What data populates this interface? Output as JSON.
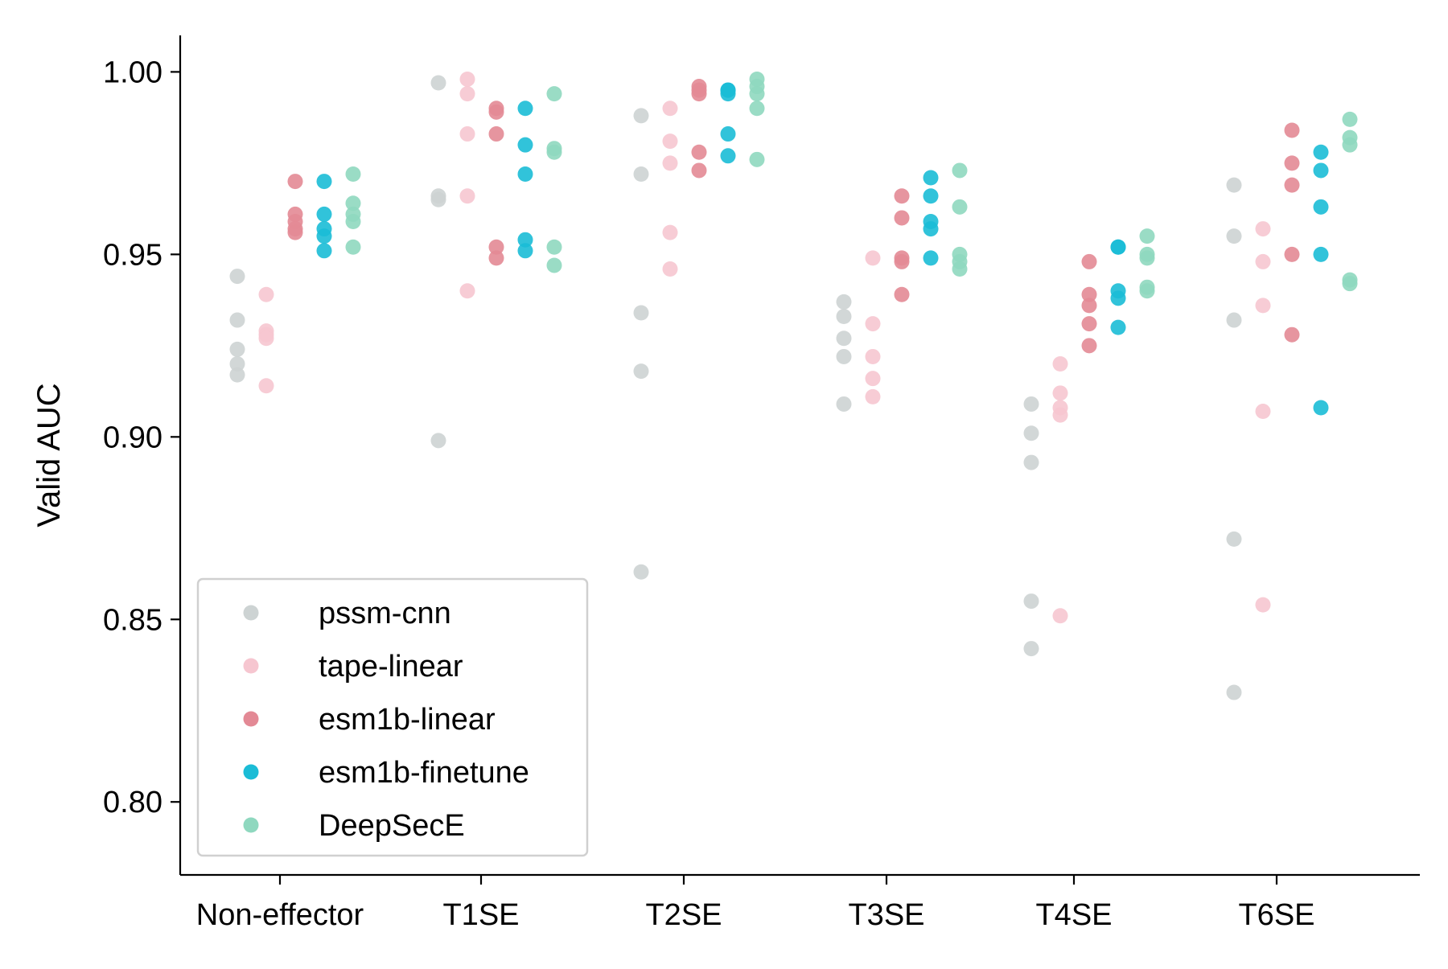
{
  "chart_data": {
    "type": "scatter",
    "title": "",
    "xlabel": "",
    "ylabel": "Valid AUC",
    "ylim": [
      0.78,
      1.01
    ],
    "yticks": [
      0.8,
      0.85,
      0.9,
      0.95,
      1.0
    ],
    "ytick_labels": [
      "0.80",
      "0.85",
      "0.90",
      "0.95",
      "1.00"
    ],
    "categories": [
      "Non-effector",
      "T1SE",
      "T2SE",
      "T3SE",
      "T4SE",
      "T6SE"
    ],
    "grid": false,
    "legend_position": "lower-left",
    "series": [
      {
        "name": "pssm-cnn",
        "color": "#cdd3d3",
        "values": [
          [
            0.944,
            0.932,
            0.924,
            0.92,
            0.917
          ],
          [
            0.997,
            0.966,
            0.965,
            0.899
          ],
          [
            0.988,
            0.972,
            0.934,
            0.918,
            0.863
          ],
          [
            0.937,
            0.933,
            0.927,
            0.922,
            0.909
          ],
          [
            0.909,
            0.901,
            0.893,
            0.855,
            0.842
          ],
          [
            0.969,
            0.955,
            0.932,
            0.872,
            0.83
          ]
        ]
      },
      {
        "name": "tape-linear",
        "color": "#f6c6d0",
        "values": [
          [
            0.939,
            0.929,
            0.928,
            0.927,
            0.914
          ],
          [
            0.998,
            0.994,
            0.983,
            0.966,
            0.94
          ],
          [
            0.99,
            0.981,
            0.975,
            0.956,
            0.946
          ],
          [
            0.949,
            0.931,
            0.922,
            0.916,
            0.911
          ],
          [
            0.92,
            0.912,
            0.908,
            0.906,
            0.851
          ],
          [
            0.957,
            0.948,
            0.936,
            0.907,
            0.854
          ]
        ]
      },
      {
        "name": "esm1b-linear",
        "color": "#e38995",
        "values": [
          [
            0.97,
            0.961,
            0.959,
            0.957,
            0.956
          ],
          [
            0.99,
            0.989,
            0.983,
            0.952,
            0.949
          ],
          [
            0.996,
            0.994,
            0.978,
            0.973,
            0.995
          ],
          [
            0.966,
            0.96,
            0.949,
            0.948,
            0.939
          ],
          [
            0.948,
            0.939,
            0.936,
            0.931,
            0.925
          ],
          [
            0.984,
            0.975,
            0.969,
            0.95,
            0.928
          ]
        ]
      },
      {
        "name": "esm1b-finetune",
        "color": "#1bbcd6",
        "values": [
          [
            0.97,
            0.961,
            0.957,
            0.955,
            0.951
          ],
          [
            0.99,
            0.98,
            0.972,
            0.954,
            0.951
          ],
          [
            0.995,
            0.994,
            0.983,
            0.977,
            0.995
          ],
          [
            0.971,
            0.966,
            0.959,
            0.957,
            0.949
          ],
          [
            0.952,
            0.952,
            0.94,
            0.938,
            0.93
          ],
          [
            0.978,
            0.973,
            0.963,
            0.95,
            0.908
          ]
        ]
      },
      {
        "name": "DeepSecE",
        "color": "#8fd8bf",
        "values": [
          [
            0.972,
            0.964,
            0.961,
            0.959,
            0.952
          ],
          [
            0.994,
            0.979,
            0.978,
            0.952,
            0.947
          ],
          [
            0.998,
            0.996,
            0.994,
            0.99,
            0.976
          ],
          [
            0.973,
            0.963,
            0.95,
            0.948,
            0.946
          ],
          [
            0.955,
            0.95,
            0.949,
            0.941,
            0.94
          ],
          [
            0.987,
            0.982,
            0.98,
            0.943,
            0.942
          ]
        ]
      }
    ]
  }
}
